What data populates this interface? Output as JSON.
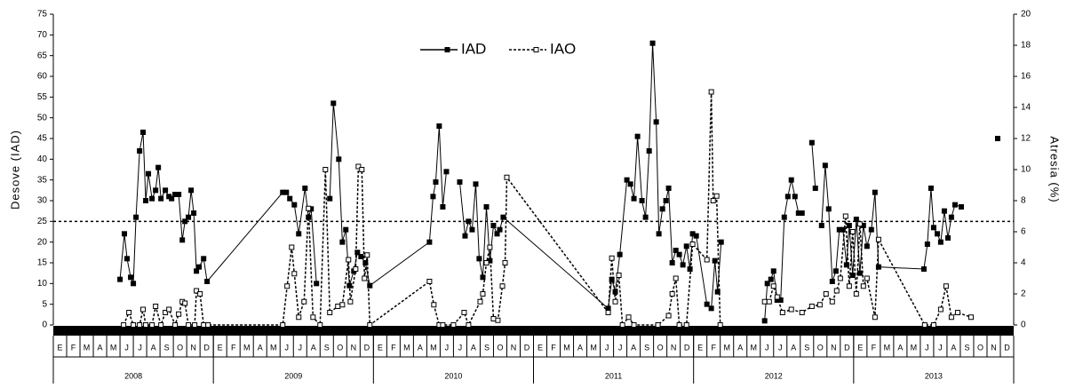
{
  "chart_data": {
    "type": "line",
    "y_label": "Desove (IAD)",
    "y2_label": "Atresia (%)",
    "months": [
      "E",
      "F",
      "M",
      "A",
      "M",
      "J",
      "J",
      "A",
      "S",
      "O",
      "N",
      "D"
    ],
    "years": [
      "2008",
      "2009",
      "2010",
      "2011",
      "2012",
      "2013"
    ],
    "xlim": [
      0,
      72
    ],
    "ylim": [
      0,
      75
    ],
    "yticks": [
      0,
      5,
      10,
      15,
      20,
      25,
      30,
      35,
      40,
      45,
      50,
      55,
      60,
      65,
      70,
      75
    ],
    "y2lim": [
      0,
      20
    ],
    "y2ticks": [
      0,
      2,
      4,
      6,
      8,
      10,
      12,
      14,
      16,
      18,
      20
    ],
    "reference_line": 25,
    "legend": "top",
    "series": [
      {
        "name": "IAD",
        "color": "#000000",
        "marker": "filled",
        "dashed": false,
        "x": [
          5.0,
          5.33,
          5.53,
          5.8,
          6,
          6.2,
          6.47,
          6.73,
          6.93,
          7.13,
          7.4,
          7.67,
          7.87,
          8.07,
          8.4,
          8.67,
          8.87,
          9.13,
          9.4,
          9.67,
          9.87,
          10.13,
          10.33,
          10.53,
          10.73,
          10.93,
          11.27,
          11.53,
          17.2,
          17.47,
          17.73,
          18.07,
          18.4,
          18.87,
          19.13,
          19.33,
          19.73,
          20.2,
          20.73,
          21,
          21.4,
          21.67,
          21.93,
          22.2,
          22.53,
          22.8,
          23.07,
          23.4,
          23.73,
          28.2,
          28.47,
          28.67,
          28.93,
          29.2,
          29.47,
          30.0,
          30.47,
          30.87,
          31.13,
          31.4,
          31.67,
          31.93,
          32.2,
          32.47,
          32.73,
          33,
          33.27,
          33.47,
          33.73,
          41.6,
          41.87,
          42.13,
          42.47,
          43,
          43.27,
          43.53,
          43.8,
          44.13,
          44.4,
          44.67,
          44.93,
          45.2,
          45.4,
          45.67,
          45.93,
          46.13,
          46.4,
          46.67,
          46.93,
          47.2,
          47.47,
          47.73,
          47.93,
          48.2,
          49,
          49.33,
          49.6,
          49.8,
          50.07,
          51,
          53.33,
          53.53,
          53.8,
          54,
          54.27,
          54.53,
          54.8,
          55.07,
          55.33,
          55.6,
          55.87,
          56.13,
          56.5,
          56.87,
          57.13,
          57.4,
          57.6,
          57.87,
          58.13,
          58.4,
          58.67,
          58.93,
          59.2,
          59.47,
          59.67,
          59.93,
          60.2,
          60.47,
          60.73,
          61,
          61.33,
          61.6,
          61.87,
          65.27,
          65.53,
          65.8,
          66,
          66.27,
          66.53,
          66.8,
          67.07,
          67.33,
          67.6,
          68.07,
          69,
          70.8
        ],
        "values": [
          11,
          22,
          16,
          11.5,
          10,
          26,
          42,
          46.5,
          30,
          36.5,
          30.5,
          32.5,
          38,
          30.5,
          32.5,
          31,
          30.5,
          31.5,
          31.5,
          20.5,
          25,
          26,
          32.5,
          27,
          13,
          14,
          16,
          10.5,
          32,
          32,
          30.5,
          29,
          22,
          33,
          26,
          28,
          10,
          null,
          30.5,
          53.5,
          40,
          20,
          23,
          9.5,
          13,
          17.5,
          16.5,
          15,
          9.5,
          20,
          31,
          34.5,
          48,
          28.5,
          37,
          null,
          34.5,
          21.5,
          25,
          23,
          34,
          16,
          11.5,
          28.5,
          15.5,
          24,
          22,
          23,
          26,
          4,
          11,
          8,
          17,
          35,
          34,
          30.5,
          45.5,
          30,
          26,
          42,
          68,
          49,
          22,
          28,
          30,
          33,
          15,
          18,
          17,
          14.5,
          19,
          13.5,
          22,
          21.5,
          5,
          4,
          15.5,
          8,
          20,
          null,
          1,
          10,
          11,
          13,
          6,
          6,
          26,
          31,
          35,
          31,
          27,
          27,
          null,
          44,
          33,
          null,
          24,
          38.5,
          28,
          10.5,
          13,
          23,
          23,
          14.5,
          24,
          12,
          25.5,
          12.5,
          24,
          19,
          23,
          32,
          14,
          13.5,
          19.5,
          33,
          23.5,
          22,
          20,
          27.5,
          21,
          26,
          29,
          28.5,
          null,
          45
        ]
      },
      {
        "name": "IAO",
        "color": "#000000",
        "marker": "open",
        "dashed": true,
        "axis": "y2",
        "x": [
          5.27,
          5.67,
          6,
          6.47,
          6.73,
          6.93,
          7.4,
          7.67,
          8.07,
          8.4,
          8.67,
          9.13,
          9.4,
          9.67,
          9.87,
          10.13,
          10.6,
          10.73,
          11,
          11.27,
          11.6,
          17.2,
          17.53,
          17.87,
          18.07,
          18.4,
          18.8,
          19.13,
          19.47,
          20,
          20.4,
          20.73,
          21.33,
          21.67,
          22.13,
          22.27,
          22.67,
          22.87,
          23.13,
          23.33,
          23.53,
          23.73,
          28.2,
          28.53,
          28.93,
          29.2,
          30,
          30.8,
          31.13,
          32,
          32.2,
          32.47,
          32.73,
          33,
          33.33,
          33.67,
          33.87,
          34,
          41.6,
          41.87,
          42.13,
          42.4,
          42.67,
          43.13,
          43.53,
          45.33,
          46.13,
          46.4,
          46.67,
          46.93,
          47.47,
          47.93,
          49,
          49.33,
          49.47,
          49.73,
          50,
          51,
          53.33,
          53.67,
          54,
          54.27,
          54.67,
          55.33,
          56.13,
          56.87,
          57.47,
          57.93,
          58.4,
          58.73,
          59,
          59.4,
          59.67,
          59.93,
          60.2,
          60.47,
          60.73,
          61,
          61.6,
          61.87,
          65.33,
          66,
          66.53,
          66.93,
          67.33,
          67.8,
          68.8
        ],
        "values": [
          0,
          0.8,
          0,
          0,
          1,
          0,
          0,
          1.2,
          0,
          0.8,
          1,
          0,
          0.7,
          1.5,
          1.4,
          0,
          0,
          2.2,
          2,
          0,
          0,
          0,
          2.5,
          5,
          3.3,
          0.5,
          1.5,
          7.5,
          0.5,
          0,
          10,
          0.8,
          1.2,
          1.3,
          4.2,
          1.5,
          3.6,
          10.2,
          10,
          3,
          4.5,
          0,
          2.8,
          1.3,
          0,
          0,
          0,
          0.8,
          0,
          1.5,
          2,
          4,
          5,
          0.4,
          0.3,
          2.5,
          4,
          9.5,
          0.8,
          4.3,
          1.5,
          3.2,
          0,
          0.5,
          0,
          0,
          0.6,
          2,
          3,
          0,
          0,
          5.2,
          4.2,
          15,
          8,
          8.3,
          0,
          null,
          1.5,
          1.5,
          2.5,
          1.8,
          0.8,
          1,
          0.8,
          1.2,
          1.3,
          2,
          1.5,
          2.2,
          3,
          7,
          2.5,
          6,
          2,
          6.5,
          2.5,
          3,
          0.5,
          5.5,
          0,
          0,
          1,
          2.5,
          0.5,
          0.8,
          0.5
        ]
      }
    ]
  }
}
